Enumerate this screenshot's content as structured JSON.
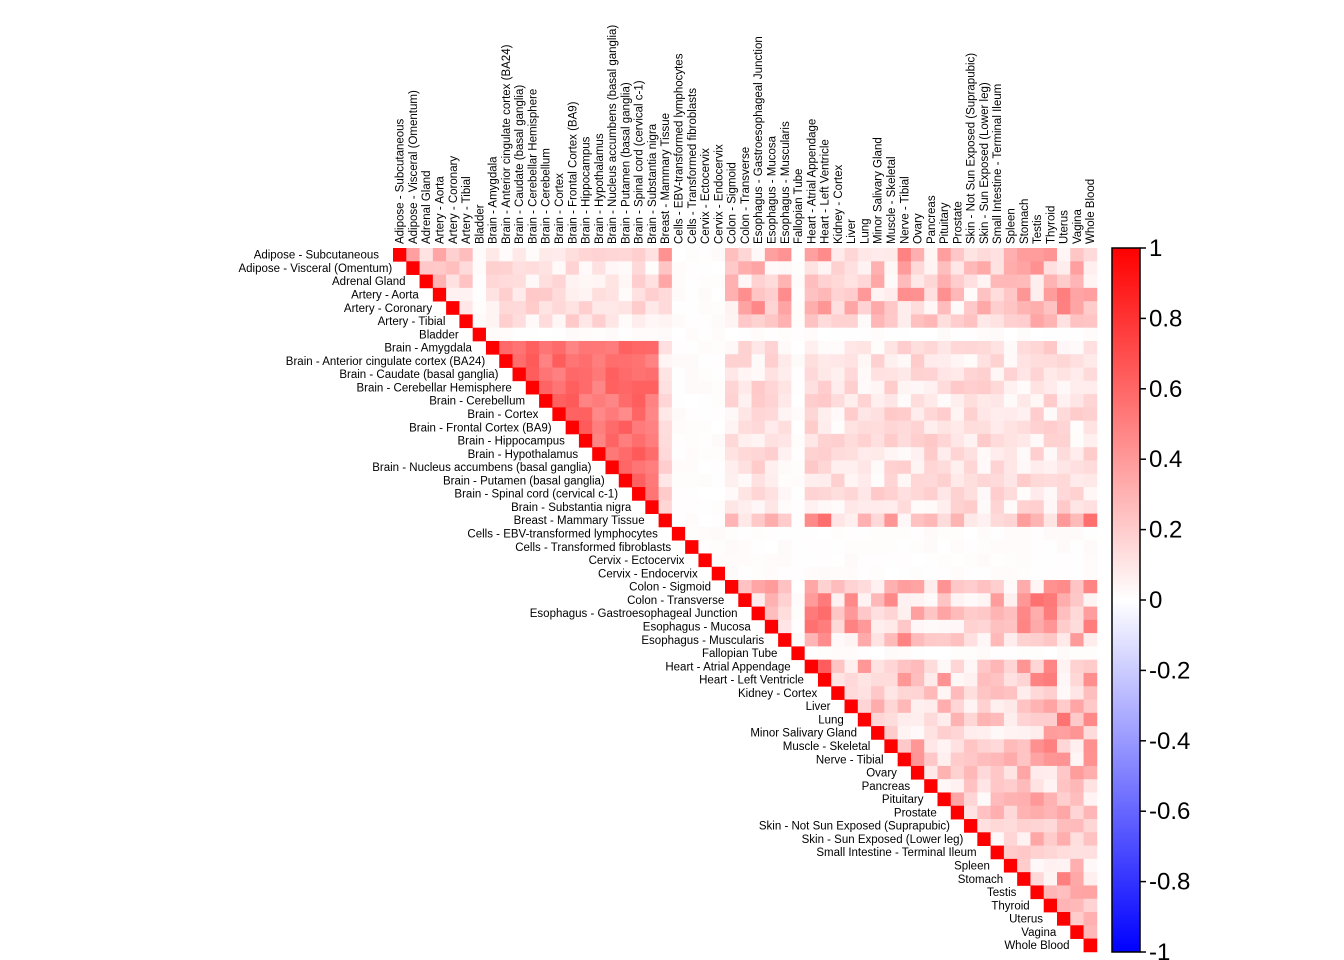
{
  "chart_data": {
    "type": "heatmap",
    "variant": "upper-triangle correlation matrix",
    "tissues": [
      "Adipose - Subcutaneous",
      "Adipose - Visceral (Omentum)",
      "Adrenal Gland",
      "Artery - Aorta",
      "Artery - Coronary",
      "Artery - Tibial",
      "Bladder",
      "Brain - Amygdala",
      "Brain - Anterior cingulate cortex (BA24)",
      "Brain - Caudate (basal ganglia)",
      "Brain - Cerebellar Hemisphere",
      "Brain - Cerebellum",
      "Brain - Cortex",
      "Brain - Frontal Cortex (BA9)",
      "Brain - Hippocampus",
      "Brain - Hypothalamus",
      "Brain - Nucleus accumbens (basal ganglia)",
      "Brain - Putamen (basal ganglia)",
      "Brain - Spinal cord (cervical c-1)",
      "Brain - Substantia nigra",
      "Breast - Mammary Tissue",
      "Cells - EBV-transformed lymphocytes",
      "Cells - Transformed fibroblasts",
      "Cervix - Ectocervix",
      "Cervix - Endocervix",
      "Colon - Sigmoid",
      "Colon - Transverse",
      "Esophagus - Gastroesophageal Junction",
      "Esophagus - Mucosa",
      "Esophagus - Muscularis",
      "Fallopian Tube",
      "Heart - Atrial Appendage",
      "Heart - Left Ventricle",
      "Kidney - Cortex",
      "Liver",
      "Lung",
      "Minor Salivary Gland",
      "Muscle - Skeletal",
      "Nerve - Tibial",
      "Ovary",
      "Pancreas",
      "Pituitary",
      "Prostate",
      "Skin - Not Sun Exposed (Suprapubic)",
      "Skin - Sun Exposed (Lower leg)",
      "Small Intestine - Terminal Ileum",
      "Spleen",
      "Stomach",
      "Testis",
      "Thyroid",
      "Uterus",
      "Vagina",
      "Whole Blood"
    ],
    "value_range": [
      -1,
      1
    ],
    "colorbar": {
      "ticks": [
        "1",
        "0.8",
        "0.6",
        "0.4",
        "0.2",
        "0",
        "-0.2",
        "-0.4",
        "-0.6",
        "-0.8",
        "-1"
      ],
      "colors": {
        "low": "#0000ff",
        "mid": "#ffffff",
        "high": "#ff0000"
      }
    },
    "diagonal": 1,
    "row_profiles": {
      "Adipose - Subcutaneous": 0.35,
      "Adipose - Visceral (Omentum)": 0.3,
      "Adrenal Gland": 0.25,
      "Artery - Aorta": 0.35,
      "Artery - Coronary": 0.35,
      "Artery - Tibial": 0.25,
      "Bladder": 0.02,
      "Brain - Amygdala": 0.15,
      "Breast - Mammary Tissue": 0.45,
      "Cells - EBV-transformed lymphocytes": 0.01,
      "Cells - Transformed fibroblasts": 0.01,
      "Cervix - Ectocervix": 0.01,
      "Cervix - Endocervix": 0.01,
      "Colon - Sigmoid": 0.35,
      "Colon - Transverse": 0.4,
      "Esophagus - Gastroesophageal Junction": 0.4,
      "Esophagus - Mucosa": 0.45,
      "Esophagus - Muscularis": 0.35,
      "Fallopian Tube": 0.02,
      "Heart - Atrial Appendage": 0.45,
      "Heart - Left Ventricle": 0.45,
      "Kidney - Cortex": 0.2,
      "Liver": 0.4,
      "Lung": 0.4,
      "Minor Salivary Gland": 0.3,
      "Muscle - Skeletal": 0.35,
      "Nerve - Tibial": 0.35,
      "Ovary": 0.3,
      "Pancreas": 0.2,
      "Pituitary": 0.3,
      "Prostate": 0.25,
      "Skin - Not Sun Exposed (Suprapubic)": 0.2,
      "Skin - Sun Exposed (Lower leg)": 0.25,
      "Small Intestine - Terminal Ileum": 0.3,
      "Spleen": 0.25,
      "Stomach": 0.35,
      "Testis": 0.5,
      "Thyroid": 0.4,
      "Uterus": 0.4,
      "Vagina": 0.3,
      "Whole Blood": 1
    },
    "brain_block_value": 0.65
  }
}
